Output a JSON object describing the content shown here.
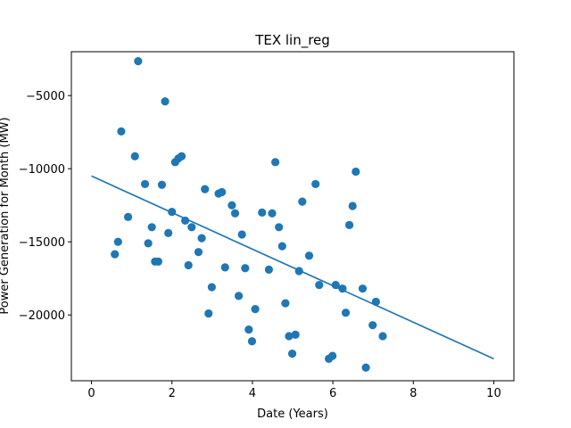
{
  "chart_data": {
    "type": "scatter",
    "title": "TEX lin_reg",
    "xlabel": "Date (Years)",
    "ylabel": "Power Generation for Month (MW)",
    "xlim": [
      -0.5,
      10.5
    ],
    "ylim": [
      -24500,
      -2000
    ],
    "x_ticks": [
      0,
      2,
      4,
      6,
      8,
      10
    ],
    "x_tick_labels": [
      "0",
      "2",
      "4",
      "6",
      "8",
      "10"
    ],
    "y_ticks": [
      -20000,
      -15000,
      -10000,
      -5000
    ],
    "y_tick_labels": [
      "−20000",
      "−15000",
      "−10000",
      "−5000"
    ],
    "grid": false,
    "point_color": "#1f77b4",
    "line_color": "#1f77b4",
    "series": [
      {
        "type": "scatter",
        "points": [
          [
            0.58,
            -15850
          ],
          [
            0.66,
            -15000
          ],
          [
            0.74,
            -7450
          ],
          [
            0.91,
            -13300
          ],
          [
            1.08,
            -9150
          ],
          [
            1.16,
            -2650
          ],
          [
            1.33,
            -11050
          ],
          [
            1.41,
            -15100
          ],
          [
            1.5,
            -14000
          ],
          [
            1.58,
            -16350
          ],
          [
            1.66,
            -16350
          ],
          [
            1.75,
            -11100
          ],
          [
            1.83,
            -5400
          ],
          [
            1.91,
            -14400
          ],
          [
            2.0,
            -12950
          ],
          [
            2.08,
            -9550
          ],
          [
            2.16,
            -9300
          ],
          [
            2.24,
            -9150
          ],
          [
            2.33,
            -13550
          ],
          [
            2.41,
            -16600
          ],
          [
            2.49,
            -14000
          ],
          [
            2.66,
            -15700
          ],
          [
            2.74,
            -14750
          ],
          [
            2.82,
            -11400
          ],
          [
            2.91,
            -19900
          ],
          [
            2.99,
            -18100
          ],
          [
            3.16,
            -11700
          ],
          [
            3.24,
            -11600
          ],
          [
            3.32,
            -16750
          ],
          [
            3.49,
            -12500
          ],
          [
            3.57,
            -13050
          ],
          [
            3.66,
            -18700
          ],
          [
            3.74,
            -14500
          ],
          [
            3.82,
            -16800
          ],
          [
            3.91,
            -21000
          ],
          [
            3.99,
            -21800
          ],
          [
            4.07,
            -19600
          ],
          [
            4.24,
            -13000
          ],
          [
            4.41,
            -16900
          ],
          [
            4.49,
            -13050
          ],
          [
            4.57,
            -9550
          ],
          [
            4.66,
            -14000
          ],
          [
            4.74,
            -15300
          ],
          [
            4.82,
            -19200
          ],
          [
            4.91,
            -21450
          ],
          [
            4.99,
            -22650
          ],
          [
            5.07,
            -21350
          ],
          [
            5.16,
            -17000
          ],
          [
            5.24,
            -12250
          ],
          [
            5.41,
            -15950
          ],
          [
            5.57,
            -11050
          ],
          [
            5.66,
            -17950
          ],
          [
            5.9,
            -23000
          ],
          [
            5.99,
            -22800
          ],
          [
            6.07,
            -17950
          ],
          [
            6.24,
            -18200
          ],
          [
            6.32,
            -19850
          ],
          [
            6.41,
            -13850
          ],
          [
            6.49,
            -12550
          ],
          [
            6.57,
            -10200
          ],
          [
            6.74,
            -18200
          ],
          [
            6.82,
            -23600
          ],
          [
            6.99,
            -20700
          ],
          [
            7.07,
            -19100
          ],
          [
            7.24,
            -21450
          ]
        ]
      },
      {
        "type": "line",
        "points": [
          [
            0,
            -10500
          ],
          [
            10,
            -23000
          ]
        ]
      }
    ]
  }
}
